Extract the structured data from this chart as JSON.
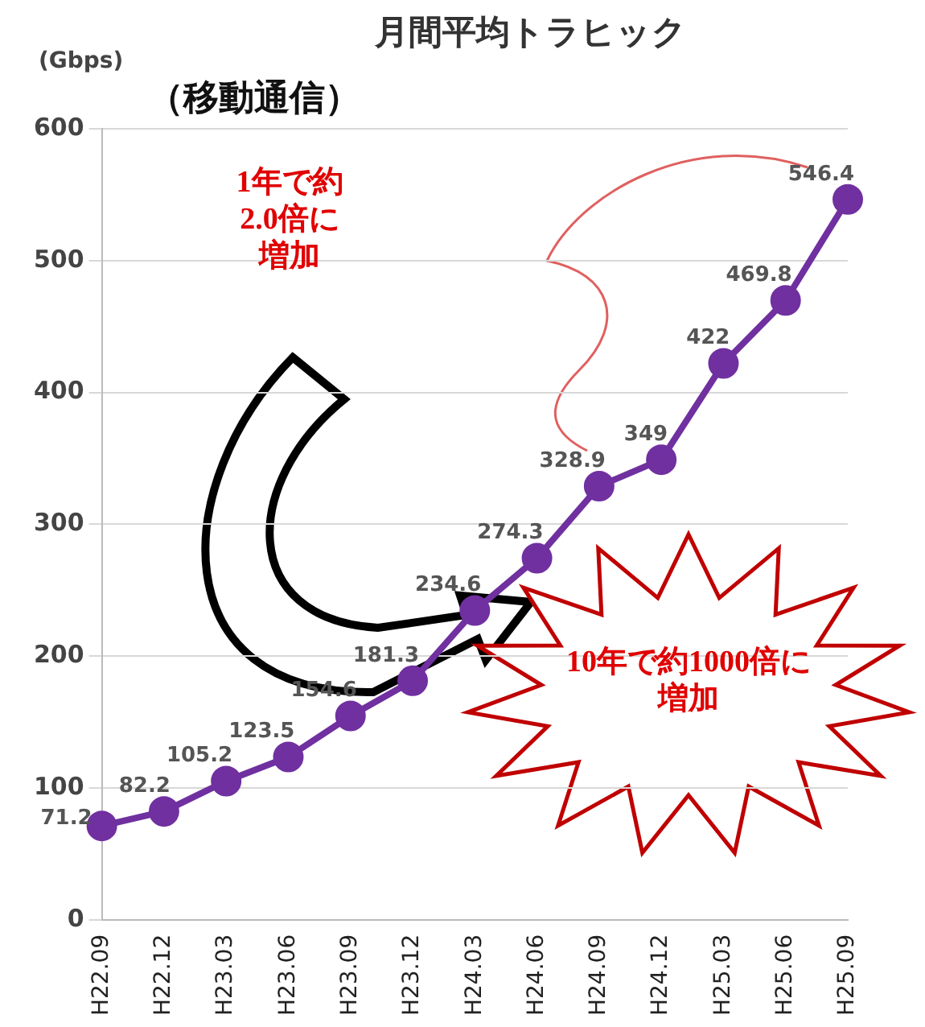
{
  "chart_data": {
    "type": "line",
    "title": "月間平均トラヒック",
    "subtitle": "（移動通信）",
    "ylabel": "(Gbps)",
    "categories": [
      "H22.09",
      "H22.12",
      "H23.03",
      "H23.06",
      "H23.09",
      "H23.12",
      "H24.03",
      "H24.06",
      "H24.09",
      "H24.12",
      "H25.03",
      "H25.06",
      "H25.09"
    ],
    "series": [
      {
        "color": "#7030a0",
        "values": [
          71.2,
          82.2,
          105.2,
          123.5,
          154.6,
          181.3,
          234.6,
          274.3,
          328.9,
          349.0,
          422.0,
          469.8,
          546.4
        ]
      }
    ],
    "ylim": [
      0,
      600
    ],
    "yticks": [
      0,
      100,
      200,
      300,
      400,
      500,
      600
    ],
    "grid": "y",
    "legend": false,
    "marker": "circle",
    "line_style": "solid",
    "data_labels": true,
    "annotations": [
      "1年で約2.0倍に増加",
      "10年で約1000倍に増加"
    ]
  }
}
